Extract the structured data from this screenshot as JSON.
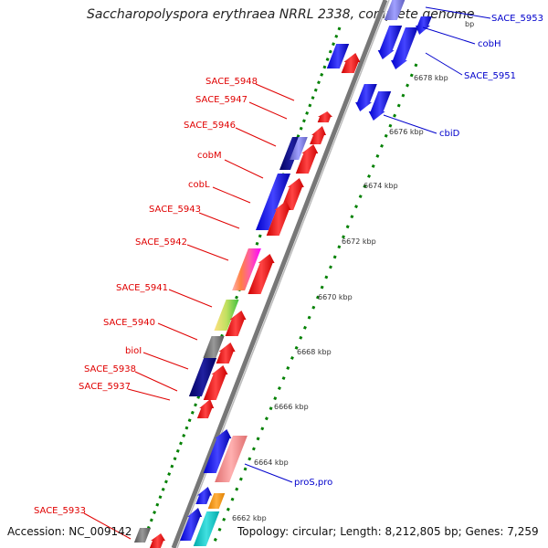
{
  "title": "Saccharopolyspora erythraea NRRL 2338, complete genome",
  "bp_fragment": "bp",
  "footer": {
    "accession": "Accession: NC_009142",
    "topology": "Topology: circular; Length: 8,212,805 bp; Genes: 7,259"
  },
  "kbp_ticks": [
    "6678 kbp",
    "6676 kbp",
    "6674 kbp",
    "6672 kbp",
    "6670 kbp",
    "6668 kbp",
    "6666 kbp",
    "6664 kbp",
    "6662 kbp"
  ],
  "left_labels": [
    "SACE_5948",
    "SACE_5947",
    "SACE_5946",
    "cobM",
    "cobL",
    "SACE_5943",
    "SACE_5942",
    "SACE_5941",
    "SACE_5940",
    "bioI",
    "SACE_5938",
    "SACE_5937",
    "SACE_5933"
  ],
  "right_labels": [
    "SACE_5953",
    "cobH",
    "SACE_5951",
    "cbiD",
    "proS,pro"
  ],
  "colors": {
    "forward_gene": "#ff0000",
    "reverse_gene": "#0000ff",
    "dark_gene": "#000080",
    "gray_gene": "#666666",
    "tick_dots": "#008000",
    "backbone": "#888888",
    "left_text": "#e00000",
    "right_text": "#0000cc"
  }
}
